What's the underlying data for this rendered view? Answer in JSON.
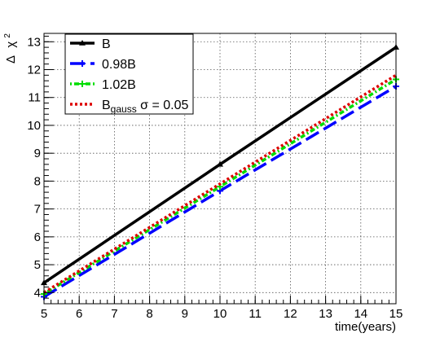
{
  "chart_data": {
    "type": "line",
    "title": "",
    "xlabel": "time(years)",
    "ylabel": "Δ χ²",
    "ylabel_parts": {
      "delta": "Δ",
      "chi": "χ",
      "exp": "2"
    },
    "xlim": [
      5,
      15
    ],
    "ylim": [
      3.6,
      13.3
    ],
    "xticks": [
      5,
      6,
      7,
      8,
      9,
      10,
      11,
      12,
      13,
      14,
      15
    ],
    "yticks": [
      4,
      5,
      6,
      7,
      8,
      9,
      10,
      11,
      12,
      13
    ],
    "grid": true,
    "legend_position": "top-left",
    "series": [
      {
        "name": "B",
        "legend_label": {
          "main": "B",
          "sub": "",
          "rest": ""
        },
        "color": "#000000",
        "dash": "solid",
        "marker": "triangle",
        "x": [
          5,
          10,
          15
        ],
        "y": [
          4.35,
          8.6,
          12.8
        ]
      },
      {
        "name": "0.98B",
        "legend_label": {
          "main": "0.98B",
          "sub": "",
          "rest": ""
        },
        "color": "#0000ff",
        "dash": "longdash",
        "marker": "plus",
        "x": [
          5,
          10,
          15
        ],
        "y": [
          3.85,
          7.65,
          11.4
        ]
      },
      {
        "name": "1.02B",
        "legend_label": {
          "main": "1.02B",
          "sub": "",
          "rest": ""
        },
        "color": "#00dd00",
        "dash": "dotdash",
        "marker": "plus",
        "x": [
          5,
          10,
          15
        ],
        "y": [
          3.95,
          7.8,
          11.65
        ]
      },
      {
        "name": "B_gauss σ = 0.05",
        "legend_label": {
          "main": "B",
          "sub": "gauss",
          "rest": " σ = 0.05"
        },
        "color": "#dd0000",
        "dash": "dotted",
        "marker": "none",
        "x": [
          5,
          10,
          15
        ],
        "y": [
          4.0,
          7.9,
          11.8
        ]
      }
    ]
  }
}
